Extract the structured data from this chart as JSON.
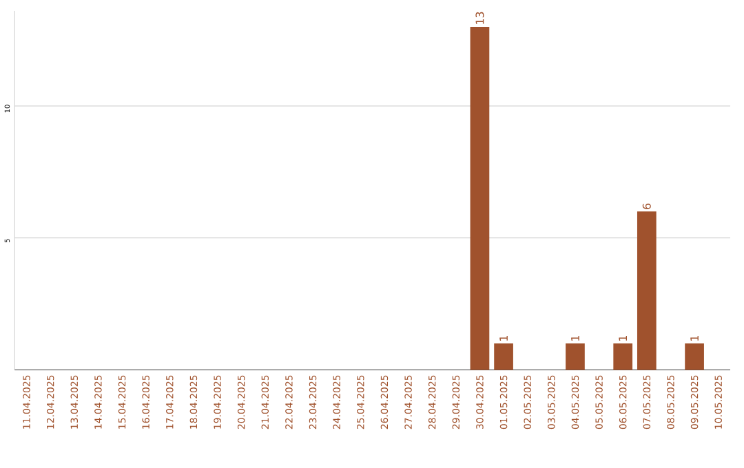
{
  "chart_data": {
    "type": "bar",
    "categories": [
      "11.04.2025",
      "12.04.2025",
      "13.04.2025",
      "14.04.2025",
      "15.04.2025",
      "16.04.2025",
      "17.04.2025",
      "18.04.2025",
      "19.04.2025",
      "20.04.2025",
      "21.04.2025",
      "22.04.2025",
      "23.04.2025",
      "24.04.2025",
      "25.04.2025",
      "26.04.2025",
      "27.04.2025",
      "28.04.2025",
      "29.04.2025",
      "30.04.2025",
      "01.05.2025",
      "02.05.2025",
      "03.05.2025",
      "04.05.2025",
      "05.05.2025",
      "06.05.2025",
      "07.05.2025",
      "08.05.2025",
      "09.05.2025",
      "10.05.2025"
    ],
    "values": [
      0,
      0,
      0,
      0,
      0,
      0,
      0,
      0,
      0,
      0,
      0,
      0,
      0,
      0,
      0,
      0,
      0,
      0,
      0,
      13,
      1,
      0,
      0,
      1,
      0,
      1,
      6,
      0,
      1,
      0
    ],
    "value_labels": [
      null,
      null,
      null,
      null,
      null,
      null,
      null,
      null,
      null,
      null,
      null,
      null,
      null,
      null,
      null,
      null,
      null,
      null,
      null,
      "13",
      "1",
      null,
      null,
      "1",
      null,
      "1",
      "6",
      null,
      "1",
      null
    ],
    "color": "#a0522d",
    "ylim": [
      0,
      13.6
    ],
    "yticks": [
      5,
      10
    ],
    "grid": "y"
  }
}
